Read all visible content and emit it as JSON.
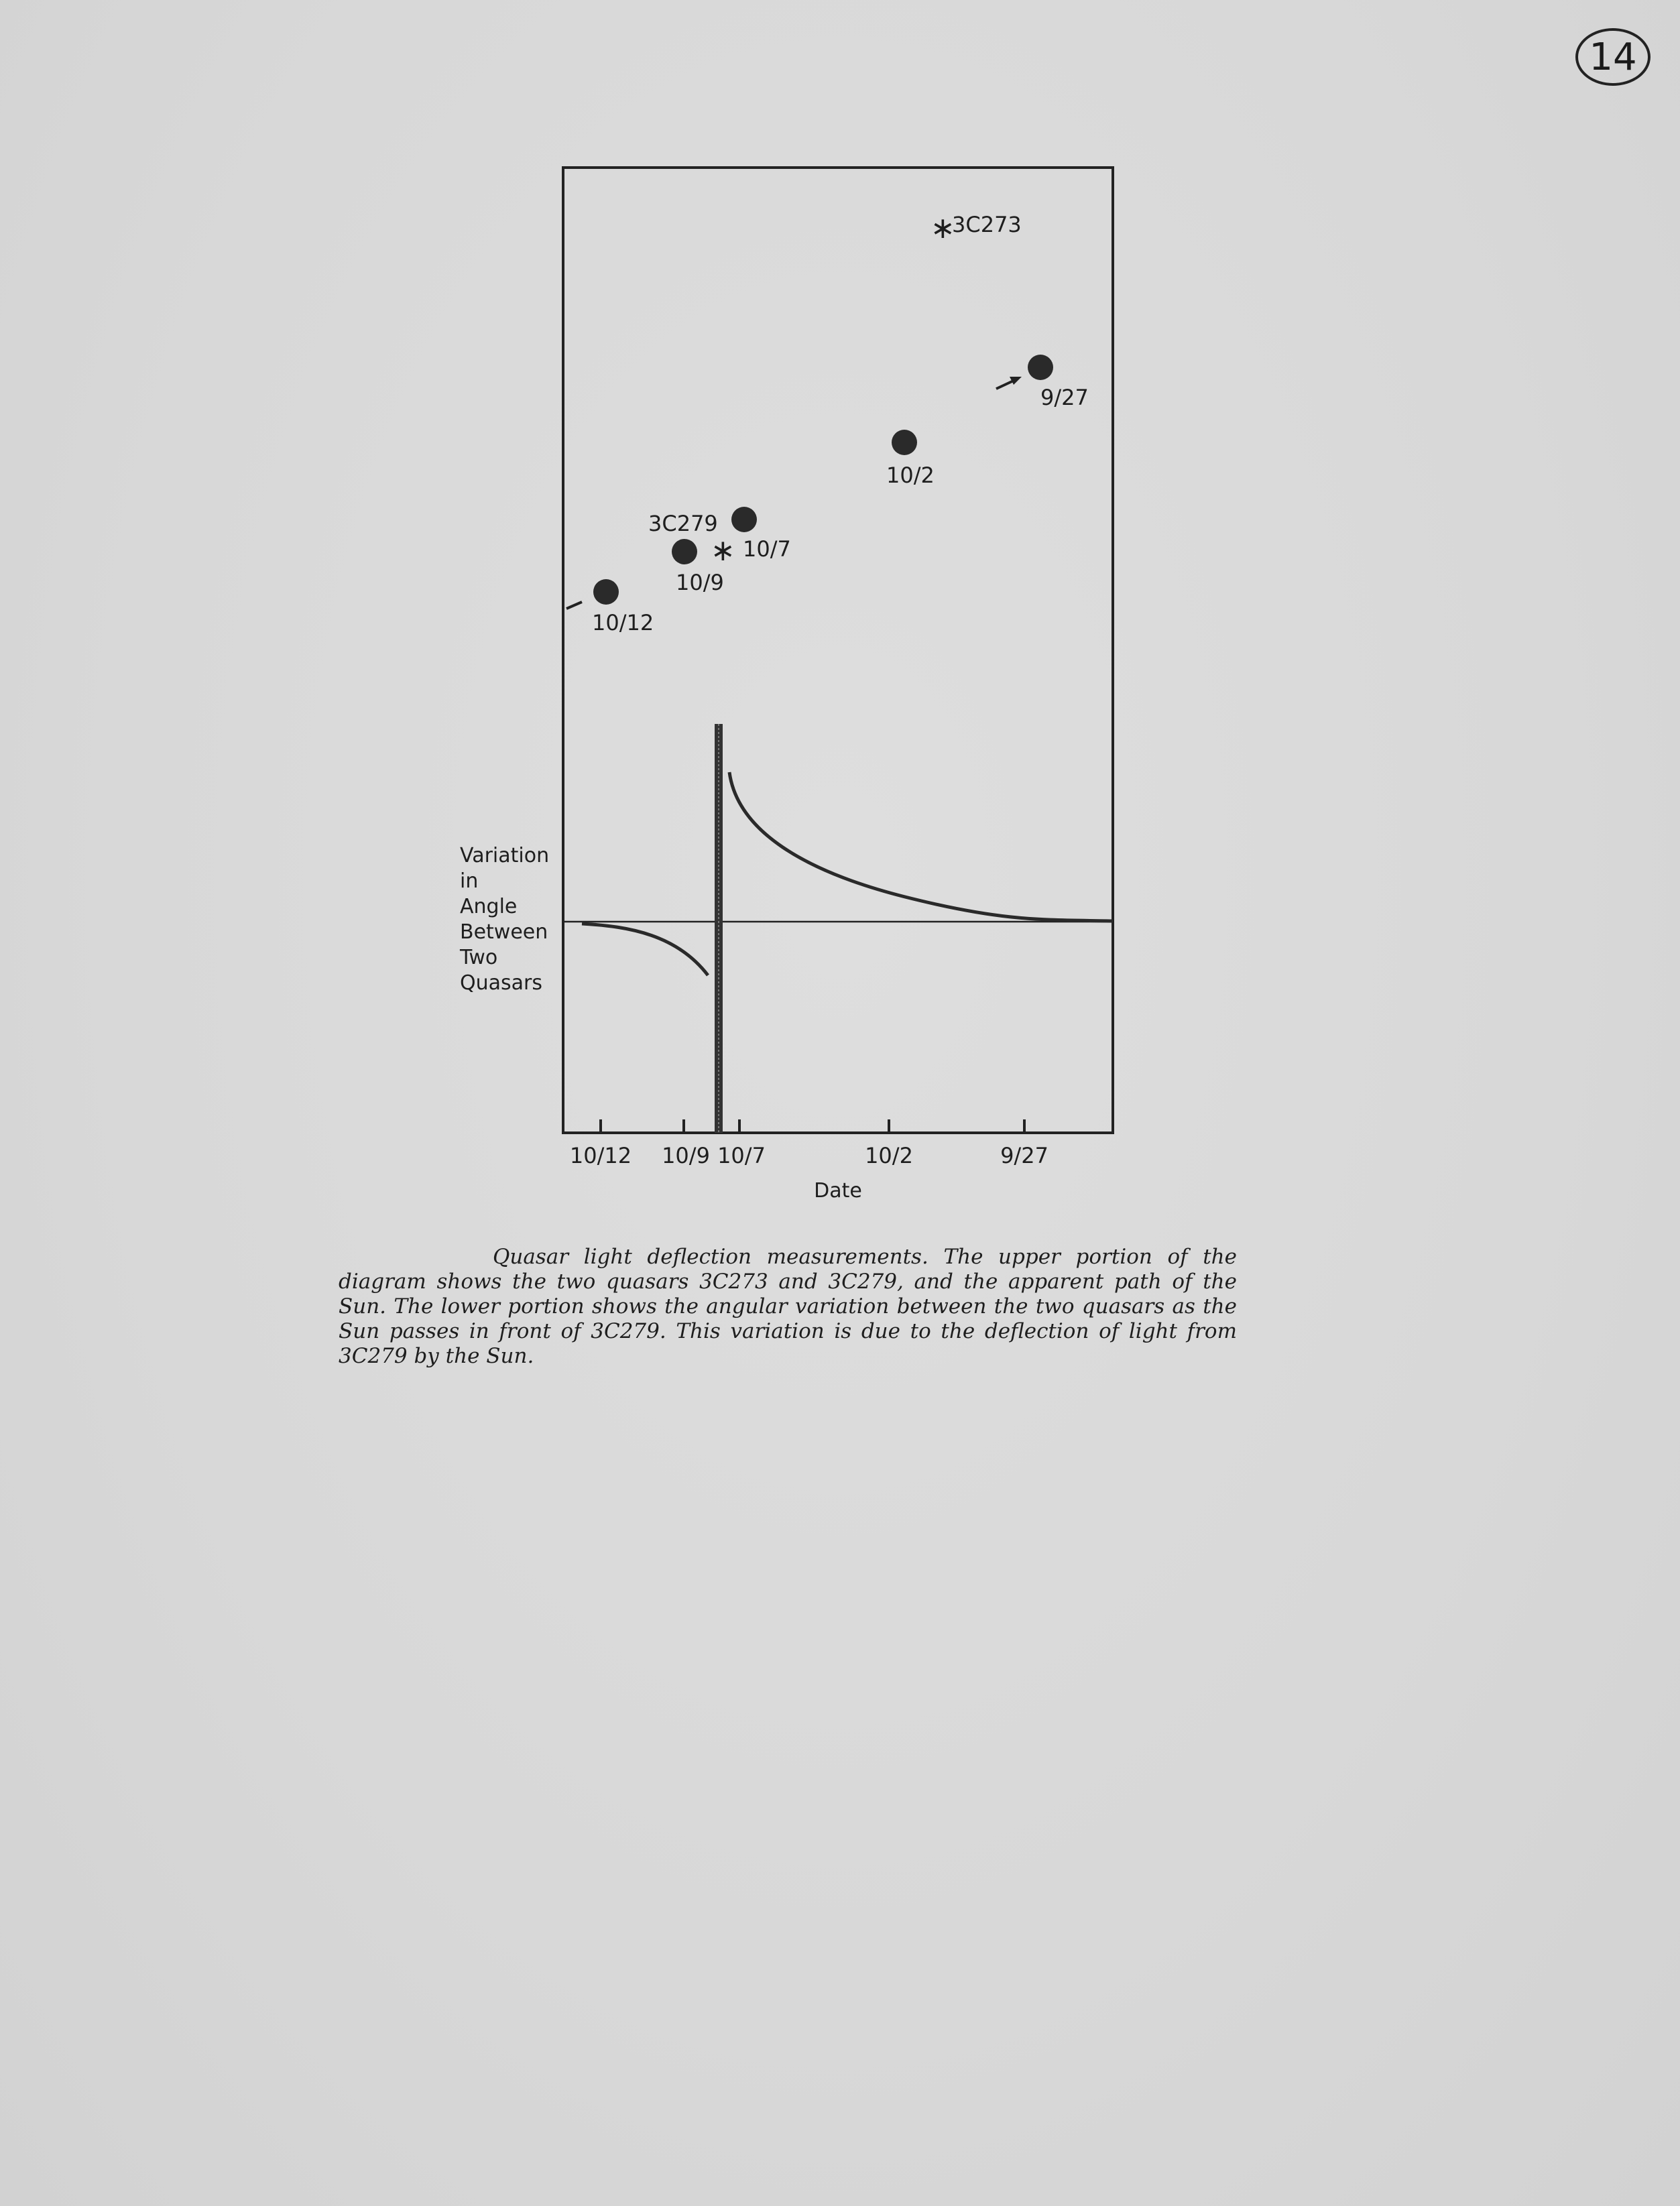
{
  "page_number": "14",
  "figure": {
    "upper": {
      "quasar_3c273": "3C273",
      "quasar_3c279": "3C279",
      "sun_positions": [
        {
          "date": "9/27"
        },
        {
          "date": "10/2"
        },
        {
          "date": "10/7"
        },
        {
          "date": "10/9"
        },
        {
          "date": "10/12"
        }
      ]
    },
    "lower": {
      "ylabel_lines": [
        "Variation",
        "in",
        "Angle",
        "Between",
        "Two",
        "Quasars"
      ],
      "xlabel": "Date",
      "xticks": [
        "10/12",
        "10/9",
        "10/7",
        "10/2",
        "9/27"
      ]
    }
  },
  "caption": "Quasar light deflection measurements. The upper portion of the diagram shows the two quasars 3C273 and 3C279, and the apparent path of the Sun. The lower portion shows the angular variation between the two quasars as the Sun passes in front of 3C279. This variation is due to the deflection of light from 3C279 by the Sun."
}
